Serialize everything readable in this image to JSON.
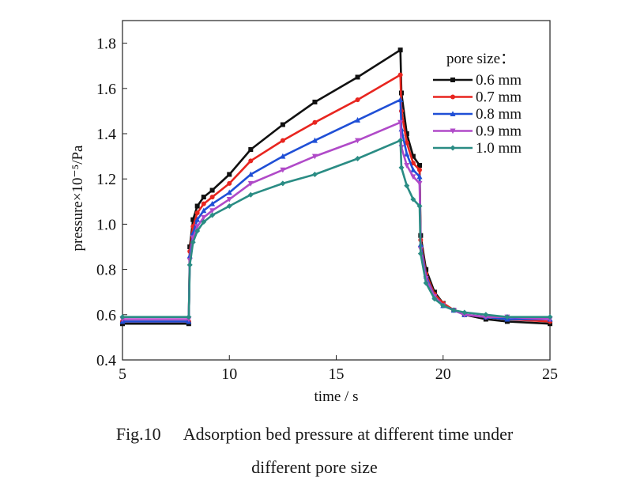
{
  "chart_data": {
    "type": "line",
    "title": "",
    "xlabel": "time / s",
    "ylabel": "pressure×10⁻⁵/Pa",
    "xlim": [
      5,
      25
    ],
    "ylim": [
      0.4,
      1.9
    ],
    "xticks": [
      5,
      10,
      15,
      20,
      25
    ],
    "yticks": [
      0.4,
      0.6,
      0.8,
      1.0,
      1.2,
      1.4,
      1.6,
      1.8
    ],
    "ytick_labels": [
      "0.4",
      "0.6",
      "0.8",
      "1.0",
      "1.2",
      "1.4",
      "1.6",
      "1.8"
    ],
    "grid": false,
    "legend_title": "pore size：",
    "legend_position": "top-right",
    "series": [
      {
        "name": "0.6 mm",
        "color": "#111111",
        "marker": "square",
        "x": [
          5.0,
          8.1,
          8.15,
          8.3,
          8.5,
          8.8,
          9.2,
          10.0,
          11.0,
          12.5,
          14.0,
          16.0,
          18.0,
          18.05,
          18.3,
          18.6,
          18.9,
          18.95,
          19.2,
          19.6,
          20.0,
          20.5,
          21.0,
          22.0,
          23.0,
          25.0
        ],
        "y": [
          0.56,
          0.56,
          0.9,
          1.02,
          1.08,
          1.12,
          1.15,
          1.22,
          1.33,
          1.44,
          1.54,
          1.65,
          1.77,
          1.58,
          1.4,
          1.3,
          1.26,
          0.95,
          0.8,
          0.7,
          0.65,
          0.62,
          0.6,
          0.58,
          0.57,
          0.56
        ]
      },
      {
        "name": "0.7 mm",
        "color": "#e8251f",
        "marker": "circle",
        "x": [
          5.0,
          8.1,
          8.15,
          8.3,
          8.5,
          8.8,
          9.2,
          10.0,
          11.0,
          12.5,
          14.0,
          16.0,
          18.0,
          18.05,
          18.3,
          18.6,
          18.9,
          18.95,
          19.2,
          19.6,
          20.0,
          20.5,
          21.0,
          22.0,
          23.0,
          25.0
        ],
        "y": [
          0.57,
          0.57,
          0.88,
          0.99,
          1.05,
          1.09,
          1.12,
          1.18,
          1.28,
          1.37,
          1.45,
          1.55,
          1.66,
          1.5,
          1.36,
          1.27,
          1.24,
          0.93,
          0.78,
          0.69,
          0.65,
          0.62,
          0.6,
          0.59,
          0.58,
          0.57
        ]
      },
      {
        "name": "0.8 mm",
        "color": "#1f4fd6",
        "marker": "triangle-up",
        "x": [
          5.0,
          8.1,
          8.15,
          8.3,
          8.5,
          8.8,
          9.2,
          10.0,
          11.0,
          12.5,
          14.0,
          16.0,
          18.0,
          18.05,
          18.3,
          18.6,
          18.9,
          18.95,
          19.2,
          19.6,
          20.0,
          20.5,
          21.0,
          22.0,
          23.0,
          25.0
        ],
        "y": [
          0.57,
          0.57,
          0.86,
          0.96,
          1.02,
          1.06,
          1.09,
          1.14,
          1.22,
          1.3,
          1.37,
          1.46,
          1.55,
          1.42,
          1.31,
          1.24,
          1.21,
          0.91,
          0.77,
          0.68,
          0.64,
          0.62,
          0.6,
          0.59,
          0.58,
          0.58
        ]
      },
      {
        "name": "0.9 mm",
        "color": "#b04ac8",
        "marker": "triangle-down",
        "x": [
          5.0,
          8.1,
          8.15,
          8.3,
          8.5,
          8.8,
          9.2,
          10.0,
          11.0,
          12.5,
          14.0,
          16.0,
          18.0,
          18.05,
          18.3,
          18.6,
          18.9,
          18.95,
          19.2,
          19.6,
          20.0,
          20.5,
          21.0,
          22.0,
          23.0,
          25.0
        ],
        "y": [
          0.58,
          0.58,
          0.84,
          0.94,
          0.99,
          1.03,
          1.06,
          1.11,
          1.18,
          1.24,
          1.3,
          1.37,
          1.45,
          1.34,
          1.26,
          1.21,
          1.18,
          0.89,
          0.76,
          0.68,
          0.64,
          0.62,
          0.6,
          0.59,
          0.59,
          0.58
        ]
      },
      {
        "name": "1.0 mm",
        "color": "#2a8c84",
        "marker": "diamond",
        "x": [
          5.0,
          8.1,
          8.15,
          8.3,
          8.5,
          8.8,
          9.2,
          10.0,
          11.0,
          12.5,
          14.0,
          16.0,
          18.0,
          18.05,
          18.3,
          18.6,
          18.9,
          18.95,
          19.2,
          19.6,
          20.0,
          20.5,
          21.0,
          22.0,
          23.0,
          25.0
        ],
        "y": [
          0.59,
          0.59,
          0.82,
          0.92,
          0.97,
          1.01,
          1.04,
          1.08,
          1.13,
          1.18,
          1.22,
          1.29,
          1.37,
          1.25,
          1.17,
          1.11,
          1.08,
          0.87,
          0.74,
          0.67,
          0.64,
          0.62,
          0.61,
          0.6,
          0.59,
          0.59
        ]
      }
    ]
  },
  "caption": {
    "figure_number": "Fig.10",
    "line1": "Adsorption bed pressure at different time under",
    "line2": "different pore size"
  }
}
